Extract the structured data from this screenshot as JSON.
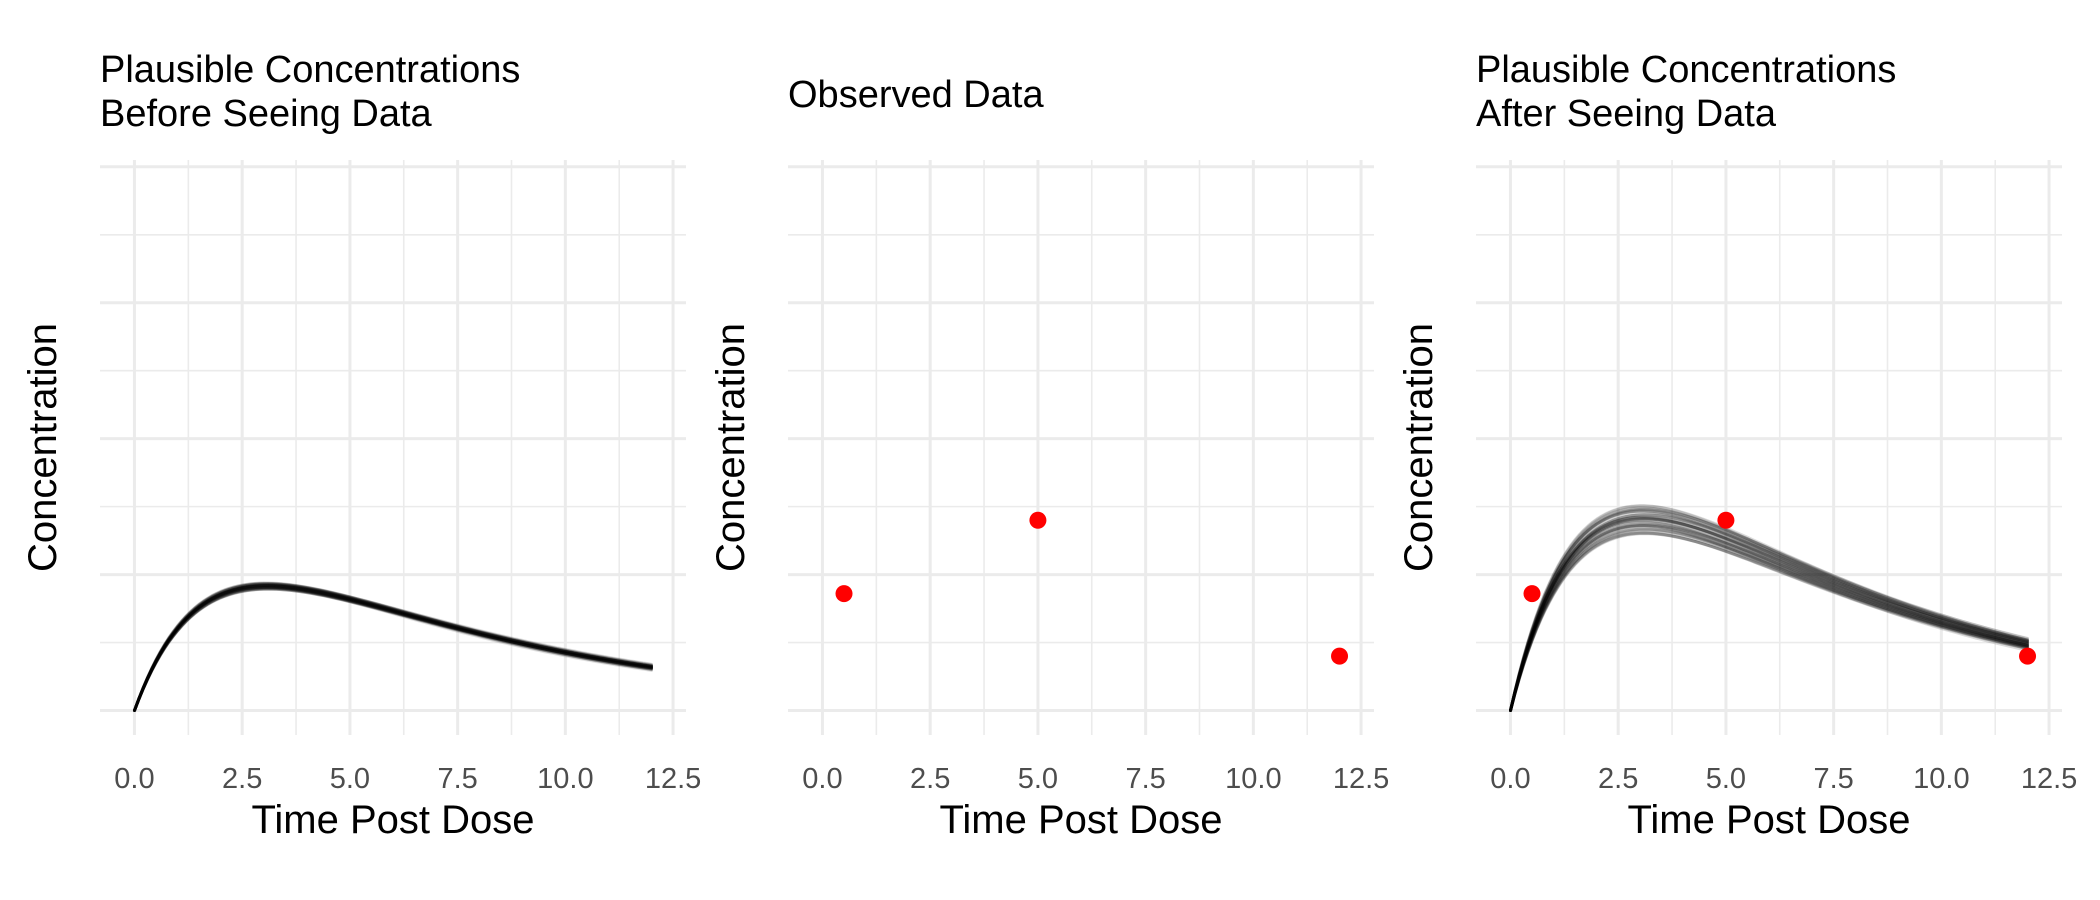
{
  "chart_data": [
    {
      "type": "line",
      "title_lines": [
        "Plausible Concentrations",
        "Before Seeing Data"
      ],
      "xlabel": "Time Post Dose",
      "ylabel": "Concentration",
      "xlim": [
        -0.8,
        12.8
      ],
      "ylim": [
        -0.18,
        4.05
      ],
      "x_ticks": [
        "0.0",
        "2.5",
        "5.0",
        "7.5",
        "10.0",
        "12.5"
      ],
      "x_tick_values": [
        0,
        2.5,
        5,
        7.5,
        10,
        12.5
      ],
      "y_tick_labels_shown": false,
      "y_major": [
        0,
        1,
        2,
        3,
        4
      ],
      "grid": true,
      "curve_model": {
        "ka": 0.6,
        "k": 0.15,
        "t_end": 12,
        "count": 40,
        "peak_range": [
          0.87,
          0.97
        ],
        "opacity": 0.12
      },
      "points": []
    },
    {
      "type": "scatter",
      "title_lines": [
        "Observed Data"
      ],
      "xlabel": "Time Post Dose",
      "ylabel": "Concentration",
      "xlim": [
        -0.8,
        12.8
      ],
      "ylim": [
        -0.18,
        4.05
      ],
      "x_ticks": [
        "0.0",
        "2.5",
        "5.0",
        "7.5",
        "10.0",
        "12.5"
      ],
      "x_tick_values": [
        0,
        2.5,
        5,
        7.5,
        10,
        12.5
      ],
      "y_tick_labels_shown": false,
      "y_major": [
        0,
        1,
        2,
        3,
        4
      ],
      "grid": true,
      "points": [
        {
          "x": 0.5,
          "y": 0.86
        },
        {
          "x": 5.0,
          "y": 1.4
        },
        {
          "x": 12.0,
          "y": 0.4
        }
      ],
      "point_color": "#ff0000"
    },
    {
      "type": "line",
      "title_lines": [
        "Plausible Concentrations",
        "After Seeing Data"
      ],
      "xlabel": "Time Post Dose",
      "ylabel": "Concentration",
      "xlim": [
        -0.8,
        12.8
      ],
      "ylim": [
        -0.18,
        4.05
      ],
      "x_ticks": [
        "0.0",
        "2.5",
        "5.0",
        "7.5",
        "10.0",
        "12.5"
      ],
      "x_tick_values": [
        0,
        2.5,
        5,
        7.5,
        10,
        12.5
      ],
      "y_tick_labels_shown": false,
      "y_major": [
        0,
        1,
        2,
        3,
        4
      ],
      "grid": true,
      "curve_model": {
        "ka": 0.6,
        "k": 0.15,
        "t_end": 12,
        "count": 40,
        "peak_range": [
          1.2,
          1.65
        ],
        "opacity": 0.14
      },
      "points": [
        {
          "x": 0.5,
          "y": 0.86
        },
        {
          "x": 5.0,
          "y": 1.4
        },
        {
          "x": 12.0,
          "y": 0.4
        }
      ],
      "point_color": "#ff0000"
    }
  ]
}
